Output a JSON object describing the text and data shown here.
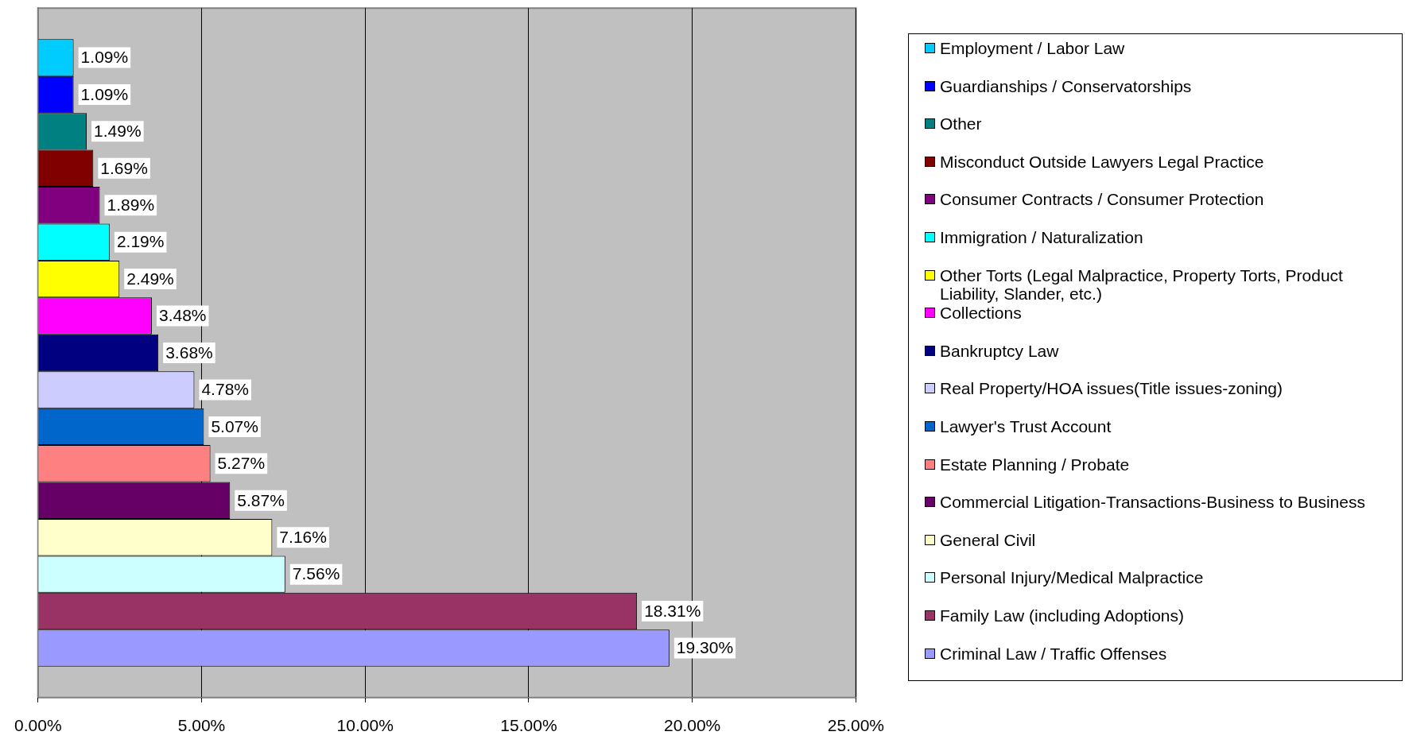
{
  "chart_data": {
    "type": "bar",
    "orientation": "horizontal",
    "categories": [
      null
    ],
    "series": [
      {
        "name": "Employment / Labor Law",
        "color": "#00ccff",
        "values": [
          1.09
        ],
        "value_labels": [
          "1.09%"
        ]
      },
      {
        "name": "Guardianships / Conservatorships",
        "color": "#0000ff",
        "values": [
          1.09
        ],
        "value_labels": [
          "1.09%"
        ]
      },
      {
        "name": "Other",
        "color": "#008080",
        "values": [
          1.49
        ],
        "value_labels": [
          "1.49%"
        ]
      },
      {
        "name": "Misconduct Outside Lawyers Legal Practice",
        "color": "#800000",
        "values": [
          1.69
        ],
        "value_labels": [
          "1.69%"
        ]
      },
      {
        "name": "Consumer Contracts / Consumer Protection",
        "color": "#800080",
        "values": [
          1.89
        ],
        "value_labels": [
          "1.89%"
        ]
      },
      {
        "name": "Immigration / Naturalization",
        "color": "#00ffff",
        "values": [
          2.19
        ],
        "value_labels": [
          "2.19%"
        ]
      },
      {
        "name": "Other Torts (Legal Malpractice, Property Torts, Product Liability, Slander, etc.)",
        "color": "#ffff00",
        "values": [
          2.49
        ],
        "value_labels": [
          "2.49%"
        ]
      },
      {
        "name": "Collections",
        "color": "#ff00ff",
        "values": [
          3.48
        ],
        "value_labels": [
          "3.48%"
        ]
      },
      {
        "name": "Bankruptcy Law",
        "color": "#000080",
        "values": [
          3.68
        ],
        "value_labels": [
          "3.68%"
        ]
      },
      {
        "name": "Real Property/HOA issues(Title issues-zoning)",
        "color": "#ccccff",
        "values": [
          4.78
        ],
        "value_labels": [
          "4.78%"
        ]
      },
      {
        "name": "Lawyer's Trust Account",
        "color": "#0066cc",
        "values": [
          5.07
        ],
        "value_labels": [
          "5.07%"
        ]
      },
      {
        "name": "Estate Planning / Probate",
        "color": "#ff8080",
        "values": [
          5.27
        ],
        "value_labels": [
          "5.27%"
        ]
      },
      {
        "name": "Commercial Litigation-Transactions-Business to Business",
        "color": "#660066",
        "values": [
          5.87
        ],
        "value_labels": [
          "5.87%"
        ]
      },
      {
        "name": "General Civil",
        "color": "#ffffcc",
        "values": [
          7.16
        ],
        "value_labels": [
          "7.16%"
        ]
      },
      {
        "name": "Personal Injury/Medical Malpractice",
        "color": "#ccffff",
        "values": [
          7.56
        ],
        "value_labels": [
          "7.56%"
        ]
      },
      {
        "name": "Family Law (including Adoptions)",
        "color": "#993366",
        "values": [
          18.31
        ],
        "value_labels": [
          "18.31%"
        ]
      },
      {
        "name": "Criminal Law / Traffic Offenses",
        "color": "#9999ff",
        "values": [
          19.3
        ],
        "value_labels": [
          "19.30%"
        ]
      }
    ],
    "xlim": [
      0,
      25
    ],
    "xticks": [
      {
        "value": 0,
        "label": "0.00%"
      },
      {
        "value": 5,
        "label": "5.00%"
      },
      {
        "value": 10,
        "label": "10.00%"
      },
      {
        "value": 15,
        "label": "15.00%"
      },
      {
        "value": 20,
        "label": "20.00%"
      },
      {
        "value": 25,
        "label": "25.00%"
      }
    ],
    "grid": "x",
    "legend": "right"
  }
}
